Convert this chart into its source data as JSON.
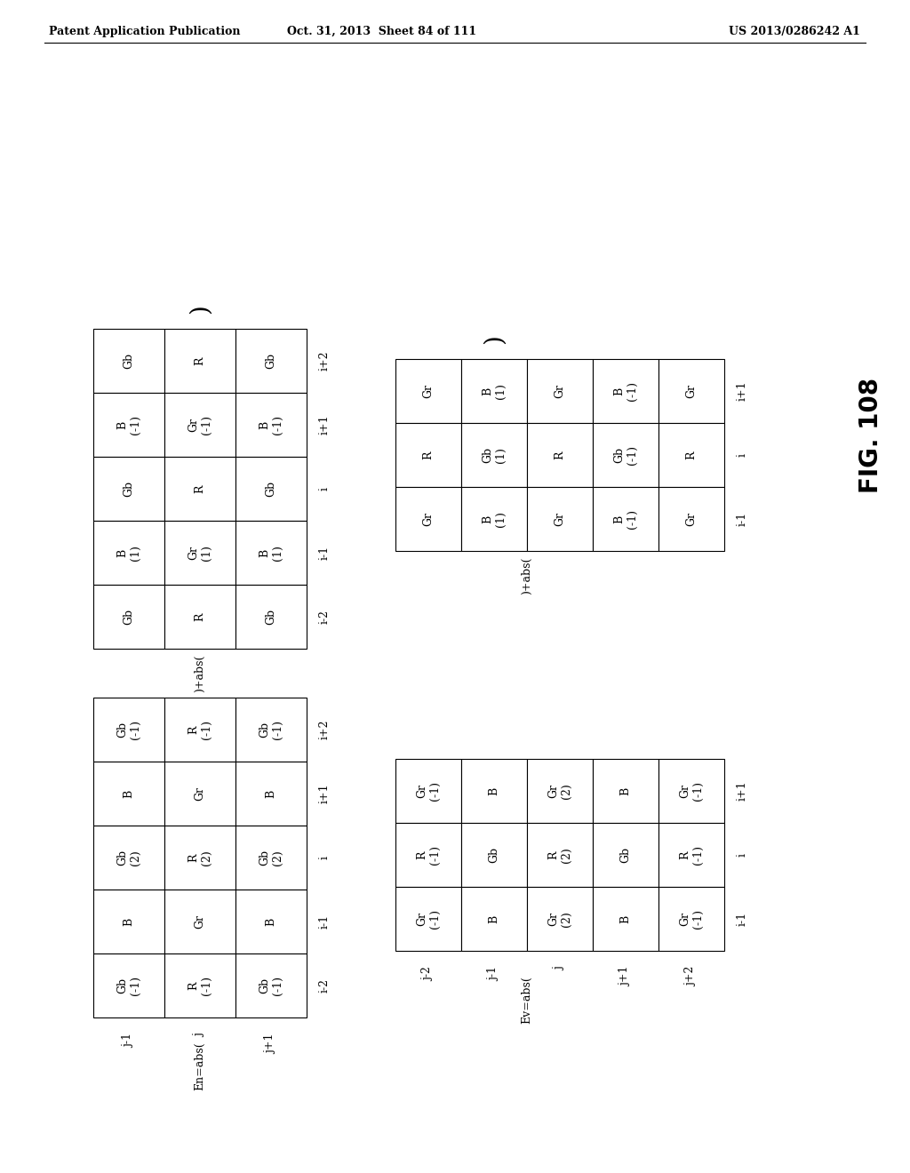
{
  "header_left": "Patent Application Publication",
  "header_mid": "Oct. 31, 2013  Sheet 84 of 111",
  "header_right": "US 2013/0286242 A1",
  "fig_label": "FIG. 108",
  "top_left_grid": {
    "cells": [
      [
        "Gb",
        "R",
        "Gb"
      ],
      [
        "B\n(-1)",
        "Gr\n(-1)",
        "B\n(-1)"
      ],
      [
        "Gb",
        "R",
        "Gb"
      ],
      [
        "B\n(1)",
        "Gr\n(1)",
        "B\n(1)"
      ],
      [
        "Gb",
        "R",
        "Gb"
      ]
    ],
    "row_labels": [
      "i+2",
      "i+1",
      "i",
      "i-1",
      "i-2"
    ]
  },
  "top_right_grid": {
    "cells": [
      [
        "Gr",
        "B\n(1)",
        "Gr",
        "B\n(-1)",
        "Gr"
      ],
      [
        "R",
        "Gb\n(1)",
        "R",
        "Gb\n(-1)",
        "R"
      ],
      [
        "Gr",
        "B\n(1)",
        "Gr",
        "B\n(-1)",
        "Gr"
      ]
    ],
    "row_labels": [
      "i+1",
      "i",
      "i-1"
    ]
  },
  "bottom_left_grid": {
    "cells": [
      [
        "Gb\n(-1)",
        "R\n(-1)",
        "Gb\n(-1)"
      ],
      [
        "B",
        "Gr",
        "B"
      ],
      [
        "Gb\n(2)",
        "R\n(2)",
        "Gb\n(2)"
      ],
      [
        "B",
        "Gr",
        "B"
      ],
      [
        "Gb\n(-1)",
        "R\n(-1)",
        "Gb\n(-1)"
      ]
    ],
    "row_labels": [
      "i+2",
      "i+1",
      "i",
      "i-1",
      "i-2"
    ],
    "col_labels": [
      "j-1",
      "j",
      "j+1"
    ]
  },
  "bottom_right_grid": {
    "cells": [
      [
        "Gr\n(-1)",
        "B",
        "Gr\n(2)",
        "B",
        "Gr\n(-1)"
      ],
      [
        "R\n(-1)",
        "Gb",
        "R\n(2)",
        "Gb",
        "R\n(-1)"
      ],
      [
        "Gr\n(-1)",
        "B",
        "Gr\n(2)",
        "B",
        "Gr\n(-1)"
      ]
    ],
    "row_labels": [
      "i+1",
      "i",
      "i-1"
    ],
    "col_labels": [
      "j-2",
      "j-1",
      "j",
      "j+1",
      "j+2"
    ]
  }
}
